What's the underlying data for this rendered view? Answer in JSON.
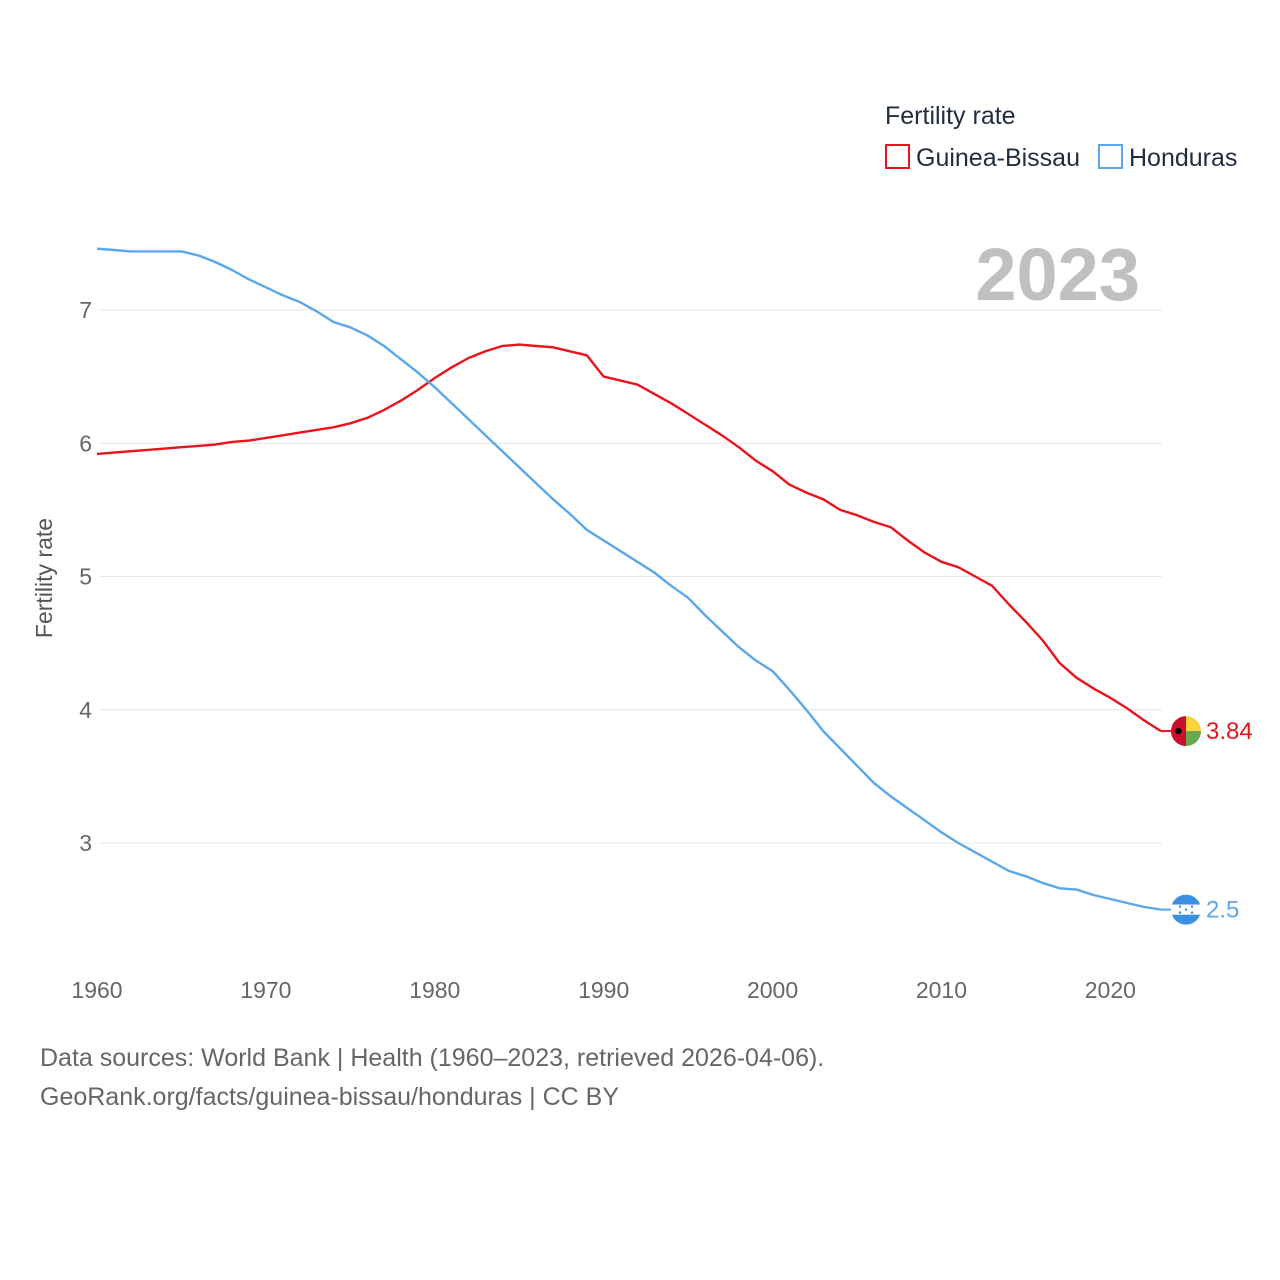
{
  "chart_data": {
    "type": "line",
    "title": "",
    "xlabel": "",
    "ylabel": "Fertility rate",
    "xlim": [
      1960,
      2023
    ],
    "ylim": [
      2.3,
      7.6
    ],
    "x_ticks": [
      "1960",
      "1970",
      "1980",
      "1990",
      "2000",
      "2010",
      "2020"
    ],
    "y_ticks": [
      "3",
      "4",
      "5",
      "6",
      "7"
    ],
    "current_year": "2023",
    "legend_title": "Fertility rate",
    "x": [
      1960,
      1961,
      1962,
      1963,
      1964,
      1965,
      1966,
      1967,
      1968,
      1969,
      1970,
      1971,
      1972,
      1973,
      1974,
      1975,
      1976,
      1977,
      1978,
      1979,
      1980,
      1981,
      1982,
      1983,
      1984,
      1985,
      1986,
      1987,
      1988,
      1989,
      1990,
      1991,
      1992,
      1993,
      1994,
      1995,
      1996,
      1997,
      1998,
      1999,
      2000,
      2001,
      2002,
      2003,
      2004,
      2005,
      2006,
      2007,
      2008,
      2009,
      2010,
      2011,
      2012,
      2013,
      2014,
      2015,
      2016,
      2017,
      2018,
      2019,
      2020,
      2021,
      2022,
      2023
    ],
    "series": [
      {
        "name": "Guinea-Bissau",
        "color": "#e8141c",
        "end_label": "3.84",
        "flag": "guinea-bissau-flag-icon",
        "values": [
          5.92,
          5.93,
          5.94,
          5.95,
          5.96,
          5.97,
          5.98,
          5.99,
          6.01,
          6.02,
          6.04,
          6.06,
          6.08,
          6.1,
          6.12,
          6.15,
          6.19,
          6.25,
          6.32,
          6.4,
          6.49,
          6.57,
          6.64,
          6.69,
          6.73,
          6.74,
          6.73,
          6.72,
          6.69,
          6.66,
          6.5,
          6.47,
          6.44,
          6.37,
          6.3,
          6.22,
          6.14,
          6.06,
          5.97,
          5.87,
          5.79,
          5.69,
          5.63,
          5.58,
          5.5,
          5.46,
          5.41,
          5.37,
          5.27,
          5.18,
          5.11,
          5.07,
          5.0,
          4.93,
          4.79,
          4.66,
          4.52,
          4.35,
          4.24,
          4.16,
          4.09,
          4.01,
          3.92,
          3.84
        ]
      },
      {
        "name": "Honduras",
        "color": "#5aa7ea",
        "end_label": "2.5",
        "flag": "honduras-flag-icon",
        "values": [
          7.46,
          7.45,
          7.44,
          7.44,
          7.44,
          7.44,
          7.41,
          7.36,
          7.3,
          7.23,
          7.17,
          7.11,
          7.06,
          6.99,
          6.91,
          6.87,
          6.81,
          6.73,
          6.63,
          6.53,
          6.42,
          6.3,
          6.18,
          6.06,
          5.94,
          5.82,
          5.7,
          5.58,
          5.47,
          5.35,
          5.27,
          5.19,
          5.11,
          5.03,
          4.93,
          4.84,
          4.71,
          4.59,
          4.47,
          4.37,
          4.29,
          4.15,
          4.0,
          3.84,
          3.71,
          3.58,
          3.45,
          3.35,
          3.26,
          3.17,
          3.08,
          3.0,
          2.93,
          2.86,
          2.79,
          2.75,
          2.7,
          2.66,
          2.65,
          2.61,
          2.58,
          2.55,
          2.52,
          2.5
        ]
      }
    ]
  },
  "source": {
    "line1": "Data sources: World Bank | Health (1960–2023, retrieved 2026-04-06).",
    "line2": "GeoRank.org/facts/guinea-bissau/honduras | CC BY"
  }
}
